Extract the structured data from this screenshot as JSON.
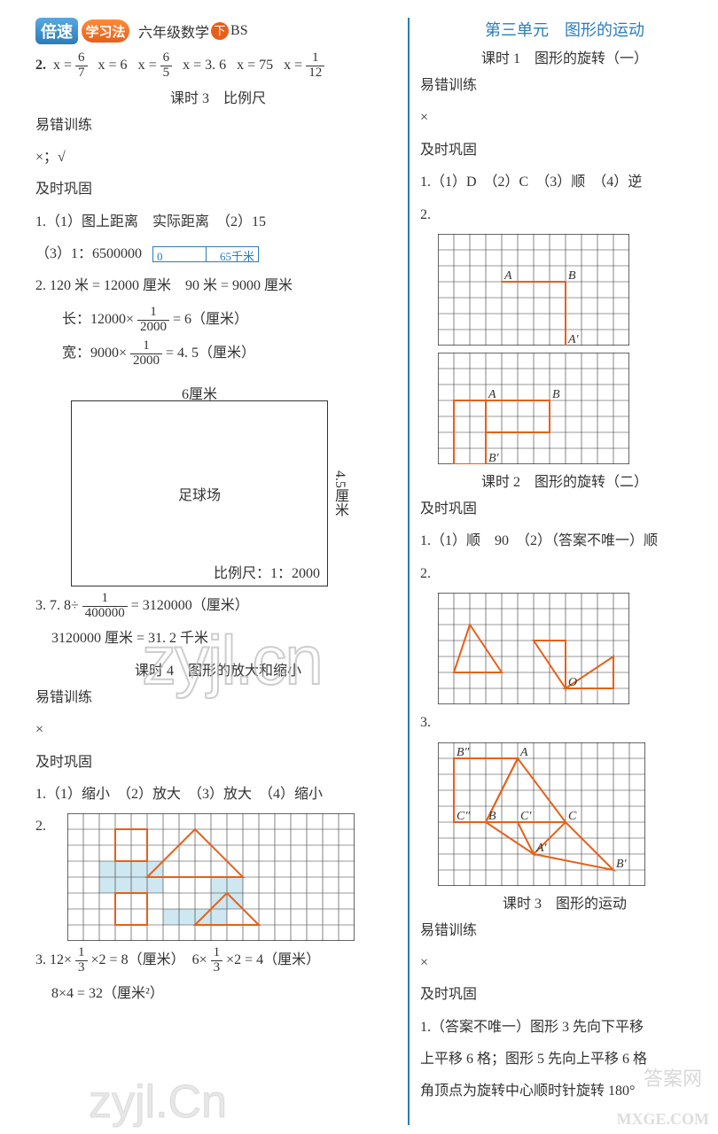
{
  "header": {
    "logo_box": "倍速",
    "logo_circle": "学习法",
    "grade": "六年级数学",
    "down": "下",
    "bs": "BS"
  },
  "left": {
    "q2_prefix": "2.",
    "q2_parts": [
      "x =",
      "x = 6",
      "x =",
      "x = 3. 6",
      "x = 75",
      "x ="
    ],
    "q2_fracs": [
      [
        "6",
        "7"
      ],
      [
        "6",
        "5"
      ],
      [
        "1",
        "12"
      ]
    ],
    "lesson3": "课时 3　比例尺",
    "err_label": "易错训练",
    "err_ans": "×；√",
    "consol_label": "及时巩固",
    "q1": "1.（1）图上距离　实际距离　（2）15",
    "q1b": "（3）1：6500000",
    "ruler_left": "0",
    "ruler_right": "65千米",
    "q2a": "2. 120 米 = 12000 厘米　90 米 = 9000 厘米",
    "q2b_pre": "长：12000×",
    "q2b_frac": [
      "1",
      "2000"
    ],
    "q2b_post": " = 6（厘米）",
    "q2c_pre": "宽：9000×",
    "q2c_frac": [
      "1",
      "2000"
    ],
    "q2c_post": " = 4. 5（厘米）",
    "box_top": "6厘米",
    "box_right": "4.5厘米",
    "box_center": "足球场",
    "box_scale": "比例尺：1：2000",
    "q3a_pre": "3. 7. 8÷",
    "q3a_frac": [
      "1",
      "400000"
    ],
    "q3a_post": " = 3120000（厘米）",
    "q3b": "3120000 厘米 = 31. 2 千米",
    "lesson4": "课时 4　图形的放大和缩小",
    "err4_ans": "×",
    "q4_1": "1.（1）缩小　（2）放大　（3）放大　（4）缩小",
    "q4_2": "2.",
    "q4_3_pre": "3. 12×",
    "q4_3_f1": [
      "1",
      "3"
    ],
    "q4_3_mid": "×2 = 8（厘米）　6×",
    "q4_3_f2": [
      "1",
      "3"
    ],
    "q4_3_post": "×2 = 4（厘米）",
    "q4_4": "8×4 = 32（厘米²）",
    "grid2": {
      "cols": 18,
      "rows": 8,
      "cell": 18,
      "stroke": "#333333",
      "shape_stroke": "#e6601a",
      "fill": "#cfe7f0",
      "filled": [
        [
          2,
          3,
          4,
          2
        ],
        [
          9,
          4,
          2,
          2
        ],
        [
          6,
          6,
          4,
          1
        ]
      ],
      "poly": [
        [
          [
            3,
            1
          ],
          [
            5,
            1
          ],
          [
            5,
            3
          ],
          [
            3,
            3
          ]
        ],
        [
          [
            8,
            1
          ],
          [
            11,
            4
          ],
          [
            5,
            4
          ]
        ],
        [
          [
            10,
            5
          ],
          [
            12,
            7
          ],
          [
            8,
            7
          ]
        ],
        [
          [
            3,
            5
          ],
          [
            5,
            5
          ],
          [
            5,
            7
          ],
          [
            3,
            7
          ]
        ]
      ]
    }
  },
  "right": {
    "unit": "第三单元　图形的运动",
    "lesson1": "课时 1　图形的旋转（一）",
    "err_label": "易错训练",
    "err_ans": "×",
    "consol_label": "及时巩固",
    "q1": "1.（1）D　（2）C　（3）顺　（4）逆",
    "q2": "2.",
    "grid1": {
      "cols": 12,
      "rows": 7,
      "cell": 18,
      "stroke": "#333",
      "shape_stroke": "#e6601a",
      "labels": [
        [
          "A",
          4,
          3
        ],
        [
          "B",
          8,
          3
        ],
        [
          "A′",
          8,
          7
        ],
        [
          "·",
          8,
          3
        ]
      ],
      "lines": [
        [
          [
            4,
            3
          ],
          [
            8,
            3
          ]
        ],
        [
          [
            8,
            3
          ],
          [
            8,
            7
          ]
        ]
      ]
    },
    "grid2": {
      "cols": 12,
      "rows": 7,
      "cell": 18,
      "stroke": "#333",
      "shape_stroke": "#e6601a",
      "labels": [
        [
          "A",
          3,
          3
        ],
        [
          "B",
          7,
          3
        ],
        [
          "B′",
          3,
          7
        ]
      ],
      "poly": [
        [
          [
            3,
            3
          ],
          [
            7,
            3
          ],
          [
            7,
            5
          ],
          [
            3,
            5
          ]
        ],
        [
          [
            3,
            3
          ],
          [
            3,
            7
          ],
          [
            1,
            7
          ],
          [
            1,
            3
          ]
        ]
      ]
    },
    "lesson2": "课时 2　图形的旋转（二）",
    "q2_1": "1.（1）顺　90　（2）（答案不唯一）顺",
    "q2_2": "2.",
    "grid3": {
      "cols": 12,
      "rows": 7,
      "cell": 18,
      "stroke": "#333",
      "shape_stroke": "#e6601a",
      "labels": [
        [
          "O",
          8,
          6
        ]
      ],
      "poly": [
        [
          [
            2,
            2
          ],
          [
            4,
            5
          ],
          [
            1,
            5
          ]
        ],
        [
          [
            8,
            6
          ],
          [
            11,
            6
          ],
          [
            11,
            4
          ]
        ],
        [
          [
            8,
            6
          ],
          [
            8,
            3
          ],
          [
            6,
            3
          ]
        ]
      ]
    },
    "q2_3": "3.",
    "grid4": {
      "cols": 13,
      "rows": 9,
      "cell": 18,
      "stroke": "#333",
      "shape_stroke": "#e6601a",
      "labels": [
        [
          "A",
          5,
          1
        ],
        [
          "B",
          3,
          5
        ],
        [
          "C",
          8,
          5
        ],
        [
          "A′",
          6,
          7
        ],
        [
          "B′",
          11,
          8
        ],
        [
          "C′",
          5,
          5
        ],
        [
          "B″",
          1,
          1
        ],
        [
          "C″",
          1,
          5
        ]
      ],
      "poly": [
        [
          [
            5,
            1
          ],
          [
            3,
            5
          ],
          [
            8,
            5
          ]
        ],
        [
          [
            5,
            1
          ],
          [
            1,
            1
          ],
          [
            1,
            5
          ],
          [
            3,
            5
          ]
        ],
        [
          [
            8,
            5
          ],
          [
            6,
            7
          ],
          [
            11,
            8
          ]
        ],
        [
          [
            3,
            5
          ],
          [
            5,
            5
          ],
          [
            6,
            7
          ]
        ]
      ]
    },
    "lesson3": "课时 3　图形的运动",
    "err3": "×",
    "bottom1": "1.（答案不唯一）图形 3 先向下平移",
    "bottom2": "上平移 6 格；图形 5 先向上平移 6 格",
    "bottom3": "角顶点为旋转中心顺时针旋转 180°"
  },
  "watermarks": {
    "w1": "zyjl.cn",
    "w2": "zyjl.Cn",
    "badge": "答案网",
    "mx": "MXGE.COM"
  }
}
